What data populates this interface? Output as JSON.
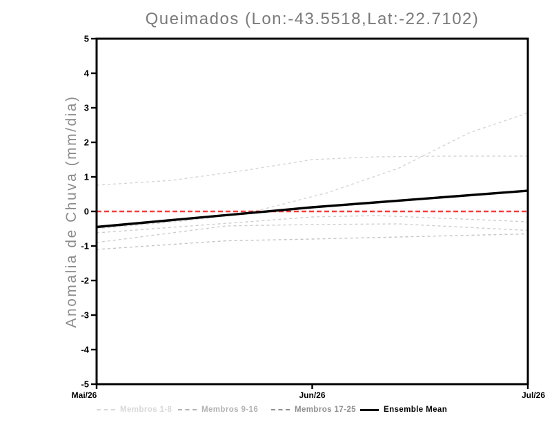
{
  "page": {
    "background": "#ffffff"
  },
  "chart_data": {
    "type": "line",
    "title": "Queimados (Lon:-43.5518,Lat:-22.7102)",
    "ylabel": "Anomalia de Chuva (mm/dia)",
    "xlabel": "",
    "x_ticks": [
      "Mai/26",
      "Jun/26",
      "Jul/26"
    ],
    "x_tick_pos": [
      0,
      1,
      2
    ],
    "x_domain": [
      0,
      2
    ],
    "ylim": [
      -5,
      5
    ],
    "y_ticks": [
      5,
      4,
      3,
      2,
      1,
      0,
      -1,
      -2,
      -3,
      -4,
      -5
    ],
    "grid": false,
    "zero_line": {
      "value": 0,
      "color": "#f93b3b",
      "style": "dashed"
    },
    "series": [
      {
        "group": "Membros 1-8",
        "color": "#d5d5d5",
        "style": "dashed",
        "x": [
          0,
          0.35,
          0.7,
          1,
          1.3,
          1.6,
          2
        ],
        "y": [
          0.76,
          0.9,
          1.2,
          1.5,
          1.58,
          1.6,
          1.6
        ]
      },
      {
        "group": "Membros 1-8",
        "color": "#d5d5d5",
        "style": "dashed",
        "x": [
          0,
          0.4,
          0.7,
          1.07,
          1.4,
          1.73,
          2
        ],
        "y": [
          -0.5,
          -0.28,
          -0.05,
          0.54,
          1.25,
          2.28,
          2.85
        ]
      },
      {
        "group": "Membros 9-16",
        "color": "#cdcdcd",
        "style": "dashed",
        "x": [
          0,
          0.7,
          1,
          1.3,
          1.7,
          2
        ],
        "y": [
          -0.62,
          -0.3,
          -0.16,
          -0.12,
          -0.22,
          -0.3
        ]
      },
      {
        "group": "Membros 9-16",
        "color": "#cdcdcd",
        "style": "dashed",
        "x": [
          0,
          0.6,
          1,
          1.4,
          2
        ],
        "y": [
          -0.9,
          -0.42,
          -0.38,
          -0.36,
          -0.55
        ]
      },
      {
        "group": "Membros 17-25",
        "color": "#c4c4c4",
        "style": "dashed",
        "x": [
          0,
          0.6,
          1,
          1.4,
          2
        ],
        "y": [
          -1.1,
          -0.85,
          -0.8,
          -0.74,
          -0.65
        ]
      },
      {
        "group": "Ensemble Mean",
        "color": "#000000",
        "style": "solid",
        "width": 3.4,
        "x": [
          0,
          1,
          2
        ],
        "y": [
          -0.45,
          0.12,
          0.6
        ]
      }
    ],
    "legend": {
      "position": "bottom",
      "items": [
        {
          "label": "Membros 1-8",
          "color": "#d8d8d8",
          "style": "dashed"
        },
        {
          "label": "Membros 9-16",
          "color": "#b2b2b2",
          "style": "dashed"
        },
        {
          "label": "Membros 17-25",
          "color": "#8f8f8f",
          "style": "dashed"
        },
        {
          "label": "Ensemble Mean",
          "color": "#000000",
          "style": "solid"
        }
      ]
    }
  }
}
